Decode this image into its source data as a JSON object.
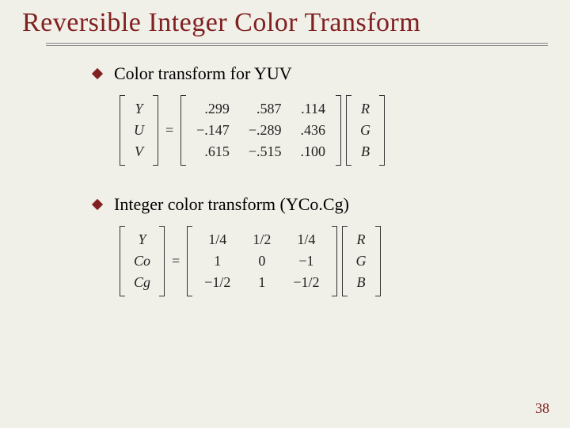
{
  "title": "Reversible Integer Color Transform",
  "bullets": {
    "b1": "Color transform for YUV",
    "b2": "Integer color transform (YCo.Cg)"
  },
  "yuv": {
    "out": [
      "Y",
      "U",
      "V"
    ],
    "m": [
      [
        ".299",
        ".587",
        ".114"
      ],
      [
        "−.147",
        "−.289",
        ".436"
      ],
      [
        ".615",
        "−.515",
        ".100"
      ]
    ],
    "in": [
      "R",
      "G",
      "B"
    ]
  },
  "ycocg": {
    "out": [
      "Y",
      "Co",
      "Cg"
    ],
    "m": [
      [
        "1/4",
        "1/2",
        "1/4"
      ],
      [
        "1",
        "0",
        "−1"
      ],
      [
        "−1/2",
        "1",
        "−1/2"
      ]
    ],
    "in": [
      "R",
      "G",
      "B"
    ]
  },
  "eq": "=",
  "page": "38",
  "colors": {
    "accent": "#802020",
    "bg": "#f0efe8"
  }
}
